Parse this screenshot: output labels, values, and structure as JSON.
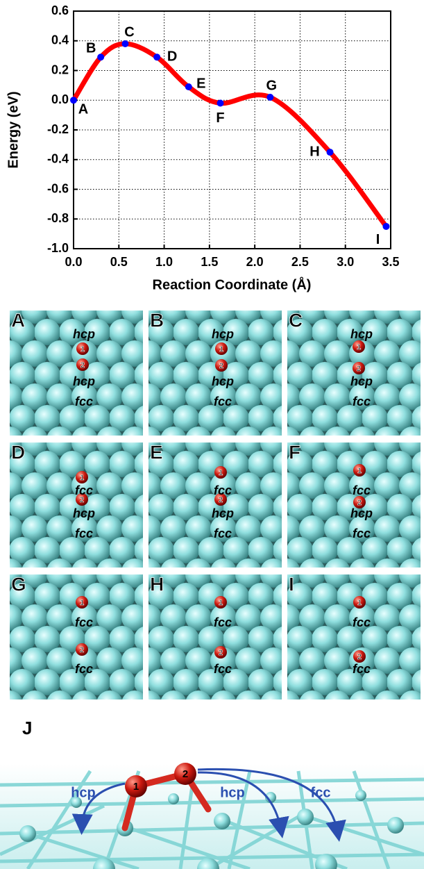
{
  "chart_data": {
    "type": "line",
    "x_label": "Reaction Coordinate (Å)",
    "y_label": "Energy (eV)",
    "x": [
      0,
      0.3,
      0.57,
      0.92,
      1.27,
      1.62,
      2.17,
      2.83,
      3.45
    ],
    "series": [
      {
        "color": "#ff0000",
        "marker_color": "#0000ff",
        "values": [
          0,
          0.29,
          0.38,
          0.29,
          0.09,
          -0.02,
          0.02,
          -0.35,
          -0.85
        ]
      }
    ],
    "point_labels": [
      "A",
      "B",
      "C",
      "D",
      "E",
      "F",
      "G",
      "H",
      "I"
    ],
    "xlim": [
      0,
      3.5
    ],
    "xticks": [
      {
        "value": 0,
        "label": "0.0"
      },
      {
        "value": 0.5,
        "label": "0.5"
      },
      {
        "value": 1,
        "label": "1.0"
      },
      {
        "value": 1.5,
        "label": "1.5"
      },
      {
        "value": 2,
        "label": "2.0"
      },
      {
        "value": 2.5,
        "label": "2.5"
      },
      {
        "value": 3,
        "label": "3.0"
      },
      {
        "value": 3.5,
        "label": "3.5"
      }
    ],
    "ylim": [
      -1.0,
      0.6
    ],
    "yticks": [
      {
        "value": -1,
        "label": "-1.0"
      },
      {
        "value": -0.8,
        "label": "-0.8"
      },
      {
        "value": -0.6,
        "label": "-0.6"
      },
      {
        "value": -0.4,
        "label": "-0.4"
      },
      {
        "value": -0.2,
        "label": "-0.2"
      },
      {
        "value": 0,
        "label": "0.0"
      },
      {
        "value": 0.2,
        "label": "0.2"
      },
      {
        "value": 0.4,
        "label": "0.4"
      },
      {
        "value": 0.6,
        "label": "0.6"
      }
    ],
    "grid": true
  },
  "panels": [
    {
      "label": "A",
      "sites": [
        "hcp",
        "hcp",
        "fcc"
      ],
      "atoms": [
        "1",
        "2"
      ]
    },
    {
      "label": "B",
      "sites": [
        "hcp",
        "hcp",
        "fcc"
      ],
      "atoms": [
        "1",
        "2"
      ]
    },
    {
      "label": "C",
      "sites": [
        "hcp",
        "hcp",
        "fcc"
      ],
      "atoms": [
        "1",
        "2"
      ]
    },
    {
      "label": "D",
      "sites": [
        "fcc",
        "hcp",
        "fcc"
      ],
      "atoms": [
        "1",
        "2"
      ]
    },
    {
      "label": "E",
      "sites": [
        "fcc",
        "hcp",
        "fcc"
      ],
      "atoms": [
        "1",
        "2"
      ]
    },
    {
      "label": "F",
      "sites": [
        "fcc",
        "hcp",
        "fcc"
      ],
      "atoms": [
        "1",
        "2"
      ]
    },
    {
      "label": "G",
      "sites": [
        "fcc",
        "fcc"
      ],
      "atoms": [
        "1",
        "2"
      ]
    },
    {
      "label": "H",
      "sites": [
        "fcc",
        "fcc"
      ],
      "atoms": [
        "1",
        "2"
      ]
    },
    {
      "label": "I",
      "sites": [
        "fcc",
        "fcc"
      ],
      "atoms": [
        "1",
        "2"
      ]
    }
  ],
  "panel_j": {
    "label": "J",
    "atoms": [
      "1",
      "2"
    ],
    "sites": [
      "hcp",
      "hcp",
      "fcc"
    ]
  }
}
